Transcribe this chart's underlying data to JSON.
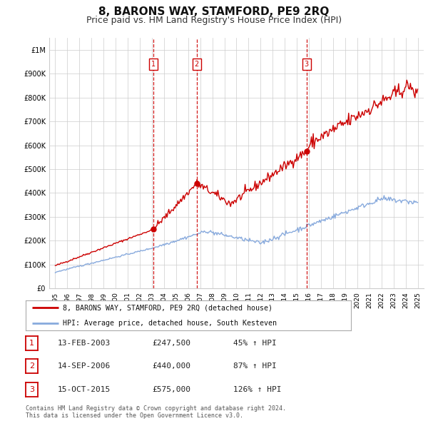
{
  "title": "8, BARONS WAY, STAMFORD, PE9 2RQ",
  "subtitle": "Price paid vs. HM Land Registry's House Price Index (HPI)",
  "title_fontsize": 11,
  "subtitle_fontsize": 9,
  "xlim": [
    1994.5,
    2025.5
  ],
  "ylim": [
    0,
    1050000
  ],
  "yticks": [
    0,
    100000,
    200000,
    300000,
    400000,
    500000,
    600000,
    700000,
    800000,
    900000,
    1000000
  ],
  "ytick_labels": [
    "£0",
    "£100K",
    "£200K",
    "£300K",
    "£400K",
    "£500K",
    "£600K",
    "£700K",
    "£800K",
    "£900K",
    "£1M"
  ],
  "xticks": [
    1995,
    1996,
    1997,
    1998,
    1999,
    2000,
    2001,
    2002,
    2003,
    2004,
    2005,
    2006,
    2007,
    2008,
    2009,
    2010,
    2011,
    2012,
    2013,
    2014,
    2015,
    2016,
    2017,
    2018,
    2019,
    2020,
    2021,
    2022,
    2023,
    2024,
    2025
  ],
  "property_color": "#cc0000",
  "hpi_color": "#88aadd",
  "sale_marker_color": "#cc0000",
  "vline_color": "#cc0000",
  "background_color": "#ffffff",
  "grid_color": "#cccccc",
  "sales": [
    {
      "num": 1,
      "year": 2003.12,
      "price": 247500,
      "label": "1"
    },
    {
      "num": 2,
      "year": 2006.71,
      "price": 440000,
      "label": "2"
    },
    {
      "num": 3,
      "year": 2015.79,
      "price": 575000,
      "label": "3"
    }
  ],
  "legend_entries": [
    {
      "label": "8, BARONS WAY, STAMFORD, PE9 2RQ (detached house)",
      "color": "#cc0000"
    },
    {
      "label": "HPI: Average price, detached house, South Kesteven",
      "color": "#88aadd"
    }
  ],
  "table_rows": [
    {
      "num": 1,
      "date": "13-FEB-2003",
      "price": "£247,500",
      "change": "45% ↑ HPI"
    },
    {
      "num": 2,
      "date": "14-SEP-2006",
      "price": "£440,000",
      "change": "87% ↑ HPI"
    },
    {
      "num": 3,
      "date": "15-OCT-2015",
      "price": "£575,000",
      "change": "126% ↑ HPI"
    }
  ],
  "footer": "Contains HM Land Registry data © Crown copyright and database right 2024.\nThis data is licensed under the Open Government Licence v3.0.",
  "label_box_color": "#cc0000"
}
